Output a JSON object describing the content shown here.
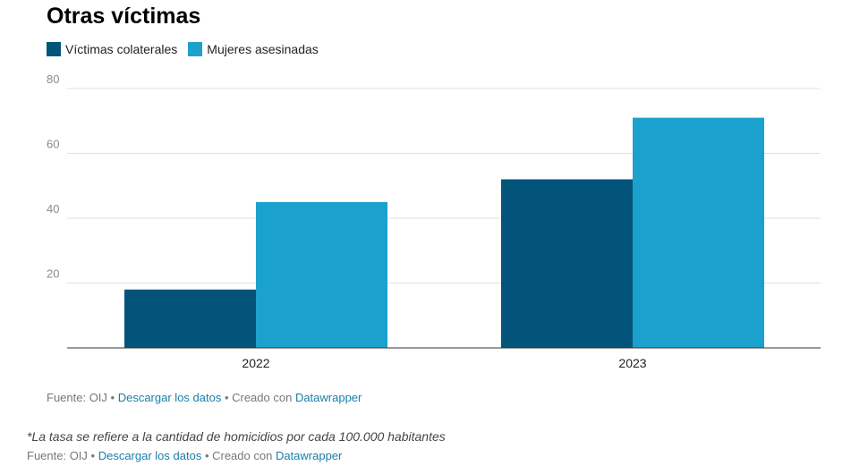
{
  "title": "Otras víctimas",
  "legend": [
    {
      "label": "Víctimas colaterales",
      "color": "#03547a"
    },
    {
      "label": "Mujeres asesinadas",
      "color": "#1ba1ce"
    }
  ],
  "chart_data": {
    "type": "bar",
    "categories": [
      "2022",
      "2023"
    ],
    "series": [
      {
        "name": "Víctimas colaterales",
        "values": [
          18,
          52
        ],
        "color": "#03547a"
      },
      {
        "name": "Mujeres asesinadas",
        "values": [
          45,
          71
        ],
        "color": "#1ba1ce"
      }
    ],
    "yticks": [
      20,
      40,
      60,
      80
    ],
    "ylim": [
      0,
      80
    ],
    "grid": true,
    "legend_position": "top-left"
  },
  "footer1": {
    "source": "Fuente: OIJ",
    "sep1": " • ",
    "download": "Descargar los datos",
    "sep2": " • Creado con ",
    "tool": "Datawrapper"
  },
  "note": "*La tasa se refiere a la cantidad de homicidios por cada 100.000 habitantes",
  "footer2": {
    "source": "Fuente: OIJ",
    "sep1": " • ",
    "download": "Descargar los datos",
    "sep2": " • Creado con ",
    "tool": "Datawrapper"
  }
}
